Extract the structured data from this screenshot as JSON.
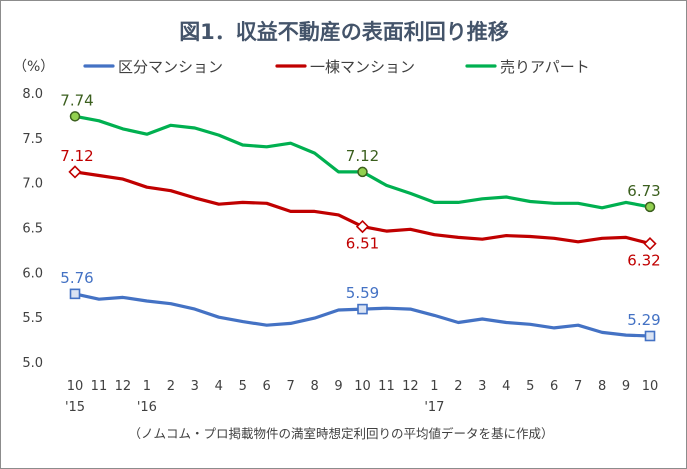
{
  "chart_data": {
    "type": "line",
    "title": "図1．収益不動産の表面利回り推移",
    "unit_label": "（%）",
    "footnote": "（ノムコム・プロ掲載物件の満室時想定利回りの平均値データを基に作成）",
    "ylim": [
      5.0,
      8.0
    ],
    "yticks": [
      "8.0",
      "7.5",
      "7.0",
      "6.5",
      "6.0",
      "5.5",
      "5.0"
    ],
    "categories": [
      "10",
      "11",
      "12",
      "1",
      "2",
      "3",
      "4",
      "5",
      "6",
      "7",
      "8",
      "9",
      "10",
      "11",
      "12",
      "1",
      "2",
      "3",
      "4",
      "5",
      "6",
      "7",
      "8",
      "9",
      "10"
    ],
    "year_labels": [
      {
        "index": 0,
        "text": "'15"
      },
      {
        "index": 3,
        "text": "'16"
      },
      {
        "index": 15,
        "text": "'17"
      }
    ],
    "grid": false,
    "legend_position": "top",
    "series": [
      {
        "name": "区分マンション",
        "color": "#4472c4",
        "marker": "square",
        "values": [
          5.76,
          5.7,
          5.72,
          5.68,
          5.65,
          5.59,
          5.5,
          5.45,
          5.41,
          5.43,
          5.49,
          5.58,
          5.59,
          5.6,
          5.59,
          5.52,
          5.44,
          5.48,
          5.44,
          5.42,
          5.38,
          5.41,
          5.33,
          5.3,
          5.29
        ],
        "labels": [
          {
            "index": 0,
            "text": "5.76"
          },
          {
            "index": 12,
            "text": "5.59"
          },
          {
            "index": 24,
            "text": "5.29"
          }
        ]
      },
      {
        "name": "一棟マンション",
        "color": "#c00000",
        "marker": "diamond",
        "values": [
          7.12,
          7.08,
          7.04,
          6.95,
          6.91,
          6.83,
          6.76,
          6.78,
          6.77,
          6.68,
          6.68,
          6.64,
          6.51,
          6.46,
          6.48,
          6.42,
          6.39,
          6.37,
          6.41,
          6.4,
          6.38,
          6.34,
          6.38,
          6.39,
          6.32
        ],
        "labels": [
          {
            "index": 0,
            "text": "7.12"
          },
          {
            "index": 12,
            "text": "6.51"
          },
          {
            "index": 24,
            "text": "6.32"
          }
        ]
      },
      {
        "name": "売りアパート",
        "color": "#00b050",
        "marker": "circle",
        "values": [
          7.74,
          7.69,
          7.6,
          7.54,
          7.64,
          7.61,
          7.53,
          7.42,
          7.4,
          7.44,
          7.33,
          7.12,
          7.12,
          6.97,
          6.88,
          6.78,
          6.78,
          6.82,
          6.84,
          6.79,
          6.77,
          6.77,
          6.72,
          6.78,
          6.73
        ],
        "labels": [
          {
            "index": 0,
            "text": "7.74"
          },
          {
            "index": 12,
            "text": "7.12"
          },
          {
            "index": 24,
            "text": "6.73"
          }
        ]
      }
    ],
    "label_colors": {
      "区分マンション": "#4472c4",
      "一棟マンション": "#c00000",
      "売りアパート": "#3b5f1e"
    },
    "marker_colors": {
      "square_fill": "#dae3f3",
      "diamond_fill": "#ffffff",
      "circle_fill": "#92d050",
      "circle_stroke": "#3b5f1e"
    }
  }
}
